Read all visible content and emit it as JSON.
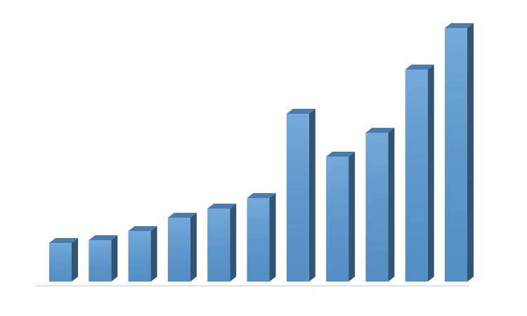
{
  "chart_data": {
    "type": "bar3d",
    "values": [
      55,
      59,
      72,
      91,
      104,
      119,
      239,
      178,
      212,
      302,
      361
    ],
    "color": "#5b9bd5"
  }
}
